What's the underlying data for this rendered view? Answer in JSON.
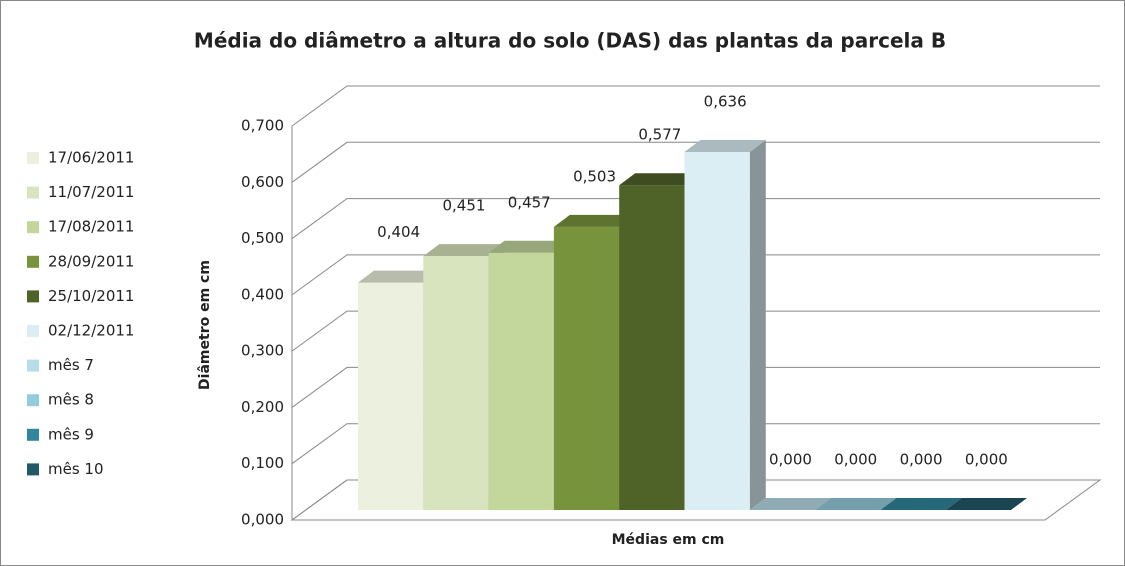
{
  "chart_data": {
    "type": "bar",
    "title": "Média do diâmetro a altura do solo (DAS) das plantas da parcela B",
    "y_label": "Diâmetro em cm",
    "x_label": "Médias em cm",
    "ylim": [
      0,
      0.7
    ],
    "yticks": [
      {
        "value": 0,
        "label": "0,000"
      },
      {
        "value": 0.1,
        "label": "0,100"
      },
      {
        "value": 0.2,
        "label": "0,200"
      },
      {
        "value": 0.3,
        "label": "0,300"
      },
      {
        "value": 0.4,
        "label": "0,400"
      },
      {
        "value": 0.5,
        "label": "0,500"
      },
      {
        "value": 0.6,
        "label": "0,600"
      },
      {
        "value": 0.7,
        "label": "0,700"
      }
    ],
    "grid": true,
    "legend": "left",
    "series": [
      {
        "name": "17/06/2011",
        "color": "#ebf1de",
        "values": [
          0.404
        ],
        "value_labels": [
          "0,404"
        ]
      },
      {
        "name": "11/07/2011",
        "color": "#d7e4bd",
        "values": [
          0.451
        ],
        "value_labels": [
          "0,451"
        ]
      },
      {
        "name": "17/08/2011",
        "color": "#c3d69b",
        "values": [
          0.457
        ],
        "value_labels": [
          "0,457"
        ]
      },
      {
        "name": "28/09/2011",
        "color": "#77933c",
        "values": [
          0.503
        ],
        "value_labels": [
          "0,503"
        ]
      },
      {
        "name": "25/10/2011",
        "color": "#4f6228",
        "values": [
          0.577
        ],
        "value_labels": [
          "0,577"
        ]
      },
      {
        "name": "02/12/2011",
        "color": "#dbeef4",
        "values": [
          0.636
        ],
        "value_labels": [
          "0,636"
        ]
      },
      {
        "name": "mês 7",
        "color": "#b7dde8",
        "values": [
          0
        ],
        "value_labels": [
          "0,000"
        ]
      },
      {
        "name": "mês 8",
        "color": "#93cddd",
        "values": [
          0
        ],
        "value_labels": [
          "0,000"
        ]
      },
      {
        "name": "mês 9",
        "color": "#31859c",
        "values": [
          0
        ],
        "value_labels": [
          "0,000"
        ]
      },
      {
        "name": "mês 10",
        "color": "#215968",
        "values": [
          0
        ],
        "value_labels": [
          "0,000"
        ]
      }
    ]
  }
}
